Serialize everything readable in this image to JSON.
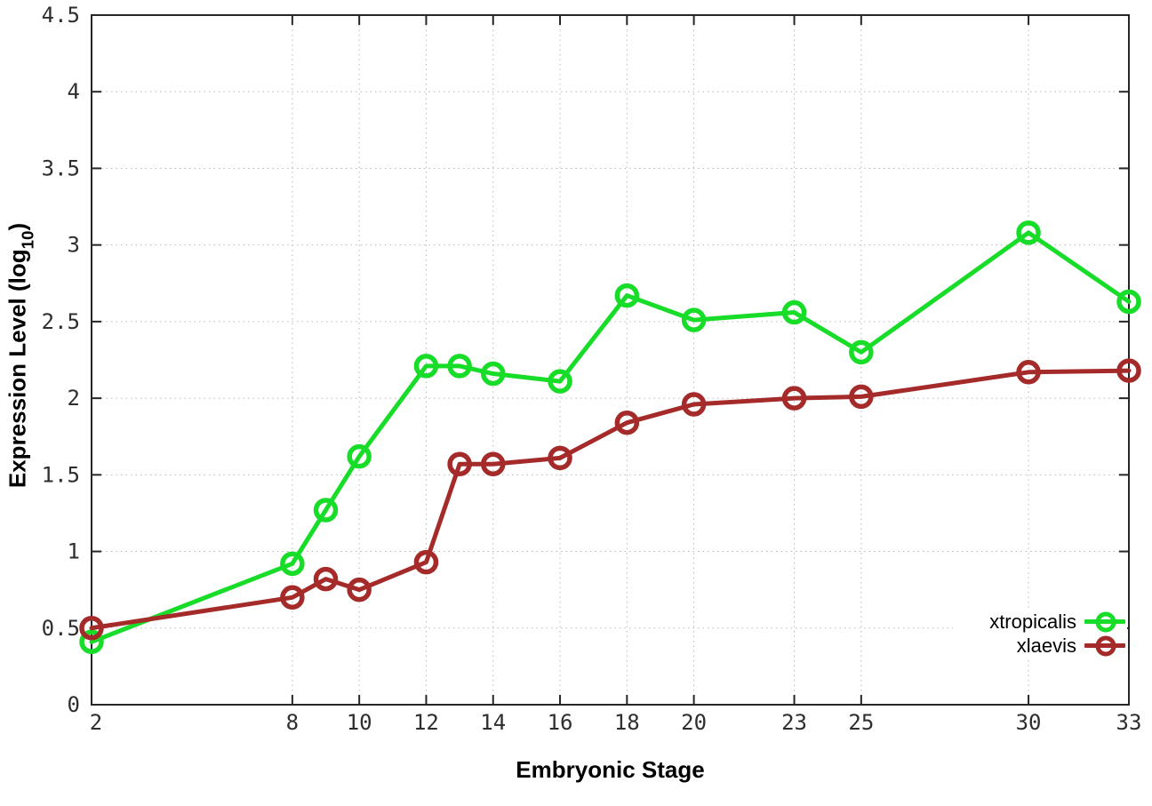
{
  "chart_data": {
    "type": "line",
    "title": "",
    "xlabel": "Embryonic Stage",
    "ylabel_parts": {
      "prefix": "Expression Level (log",
      "sub": "10",
      "suffix": ")"
    },
    "xlim": [
      2,
      33
    ],
    "ylim": [
      0,
      4.5
    ],
    "grid": true,
    "legend_position": "bottom-right",
    "x": [
      2,
      8,
      9,
      10,
      12,
      13,
      14,
      16,
      18,
      20,
      23,
      25,
      30,
      33
    ],
    "xticks": [
      {
        "v": 2,
        "label": "2"
      },
      {
        "v": 8,
        "label": "8"
      },
      {
        "v": 10,
        "label": "10"
      },
      {
        "v": 12,
        "label": "12"
      },
      {
        "v": 14,
        "label": "14"
      },
      {
        "v": 16,
        "label": "16"
      },
      {
        "v": 18,
        "label": "18"
      },
      {
        "v": 20,
        "label": "20"
      },
      {
        "v": 23,
        "label": "23"
      },
      {
        "v": 25,
        "label": "25"
      },
      {
        "v": 30,
        "label": "30"
      },
      {
        "v": 33,
        "label": "33"
      }
    ],
    "yticks": [
      {
        "v": 0,
        "label": "0"
      },
      {
        "v": 0.5,
        "label": "0.5"
      },
      {
        "v": 1,
        "label": "1"
      },
      {
        "v": 1.5,
        "label": "1.5"
      },
      {
        "v": 2,
        "label": "2"
      },
      {
        "v": 2.5,
        "label": "2.5"
      },
      {
        "v": 3,
        "label": "3"
      },
      {
        "v": 3.5,
        "label": "3.5"
      },
      {
        "v": 4,
        "label": "4"
      },
      {
        "v": 4.5,
        "label": "4.5"
      }
    ],
    "series": [
      {
        "name": "xtropicalis",
        "color": "#17dc28",
        "values": [
          0.41,
          0.92,
          1.27,
          1.62,
          2.21,
          2.21,
          2.16,
          2.11,
          2.67,
          2.51,
          2.56,
          2.3,
          3.08,
          2.63
        ]
      },
      {
        "name": "xlaevis",
        "color": "#a52a2a",
        "values": [
          0.5,
          0.7,
          0.82,
          0.75,
          0.93,
          1.57,
          1.57,
          1.61,
          1.84,
          1.96,
          2.0,
          2.01,
          2.17,
          2.18
        ]
      }
    ],
    "colors": {
      "axis": "#262626",
      "grid": "#b9b9b9",
      "tick_label": "#2e2e2e"
    }
  }
}
